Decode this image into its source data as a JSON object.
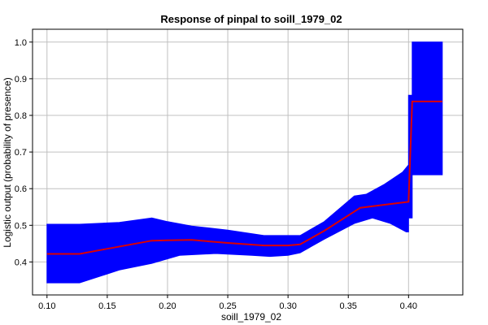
{
  "chart_data": {
    "type": "line",
    "title": "Response of pinpal to soill_1979_02",
    "xlabel": "soill_1979_02",
    "ylabel": "Logistic output (probability of presence)",
    "xlim": [
      0.088,
      0.445
    ],
    "ylim": [
      0.31,
      1.035
    ],
    "xticks": [
      "0.10",
      "0.15",
      "0.20",
      "0.25",
      "0.30",
      "0.35",
      "0.40"
    ],
    "yticks": [
      "0.4",
      "0.5",
      "0.6",
      "0.7",
      "0.8",
      "0.9",
      "1.0"
    ],
    "grid": true,
    "legend": "none",
    "series": [
      {
        "values": [
          [
            0.1,
            0.422
          ],
          [
            0.127,
            0.422
          ],
          [
            0.15,
            0.436
          ],
          [
            0.187,
            0.458
          ],
          [
            0.2,
            0.459
          ],
          [
            0.22,
            0.46
          ],
          [
            0.25,
            0.452
          ],
          [
            0.28,
            0.445
          ],
          [
            0.3,
            0.445
          ],
          [
            0.31,
            0.448
          ],
          [
            0.33,
            0.485
          ],
          [
            0.36,
            0.548
          ],
          [
            0.38,
            0.556
          ],
          [
            0.4,
            0.564
          ],
          [
            0.403,
            0.838
          ],
          [
            0.428,
            0.838
          ]
        ],
        "color": "#dd0000"
      }
    ],
    "band": {
      "upper": [
        [
          0.1,
          0.503
        ],
        [
          0.127,
          0.503
        ],
        [
          0.16,
          0.508
        ],
        [
          0.187,
          0.52
        ],
        [
          0.2,
          0.51
        ],
        [
          0.22,
          0.498
        ],
        [
          0.25,
          0.487
        ],
        [
          0.28,
          0.472
        ],
        [
          0.3,
          0.472
        ],
        [
          0.31,
          0.472
        ],
        [
          0.33,
          0.51
        ],
        [
          0.355,
          0.58
        ],
        [
          0.365,
          0.585
        ],
        [
          0.38,
          0.612
        ],
        [
          0.395,
          0.645
        ],
        [
          0.4,
          0.665
        ],
        [
          0.4,
          0.855
        ],
        [
          0.403,
          0.855
        ],
        [
          0.403,
          1.0
        ],
        [
          0.428,
          1.0
        ]
      ],
      "lower": [
        [
          0.1,
          0.343
        ],
        [
          0.127,
          0.343
        ],
        [
          0.16,
          0.378
        ],
        [
          0.187,
          0.396
        ],
        [
          0.21,
          0.418
        ],
        [
          0.24,
          0.423
        ],
        [
          0.27,
          0.418
        ],
        [
          0.285,
          0.415
        ],
        [
          0.3,
          0.418
        ],
        [
          0.31,
          0.425
        ],
        [
          0.33,
          0.462
        ],
        [
          0.355,
          0.505
        ],
        [
          0.37,
          0.52
        ],
        [
          0.385,
          0.505
        ],
        [
          0.398,
          0.482
        ],
        [
          0.4,
          0.482
        ],
        [
          0.4,
          0.52
        ],
        [
          0.403,
          0.52
        ],
        [
          0.403,
          0.638
        ],
        [
          0.428,
          0.638
        ]
      ],
      "color": "#0000ff"
    },
    "background": "#ffffff",
    "grid_color": "#c0c0c0"
  }
}
